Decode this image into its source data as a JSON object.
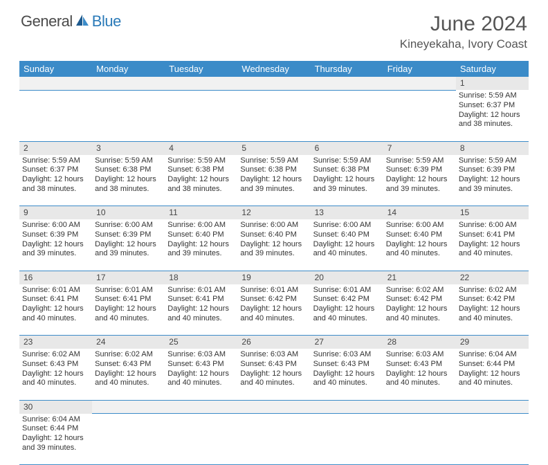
{
  "logo": {
    "part1": "General",
    "part2": "Blue"
  },
  "title": "June 2024",
  "location": "Kineyekaha, Ivory Coast",
  "colors": {
    "header_bg": "#3b8bc8",
    "header_text": "#ffffff",
    "daynum_bg": "#e8e8e8",
    "blank_bg": "#f1f1f1",
    "border": "#3b8bc8",
    "logo_gray": "#4a4a4a",
    "logo_blue": "#2a7ab8"
  },
  "weekdays": [
    "Sunday",
    "Monday",
    "Tuesday",
    "Wednesday",
    "Thursday",
    "Friday",
    "Saturday"
  ],
  "weeks": [
    {
      "nums": [
        "",
        "",
        "",
        "",
        "",
        "",
        "1"
      ],
      "cells": [
        null,
        null,
        null,
        null,
        null,
        null,
        {
          "sunrise": "5:59 AM",
          "sunset": "6:37 PM",
          "daylight": "12 hours and 38 minutes."
        }
      ]
    },
    {
      "nums": [
        "2",
        "3",
        "4",
        "5",
        "6",
        "7",
        "8"
      ],
      "cells": [
        {
          "sunrise": "5:59 AM",
          "sunset": "6:37 PM",
          "daylight": "12 hours and 38 minutes."
        },
        {
          "sunrise": "5:59 AM",
          "sunset": "6:38 PM",
          "daylight": "12 hours and 38 minutes."
        },
        {
          "sunrise": "5:59 AM",
          "sunset": "6:38 PM",
          "daylight": "12 hours and 38 minutes."
        },
        {
          "sunrise": "5:59 AM",
          "sunset": "6:38 PM",
          "daylight": "12 hours and 39 minutes."
        },
        {
          "sunrise": "5:59 AM",
          "sunset": "6:38 PM",
          "daylight": "12 hours and 39 minutes."
        },
        {
          "sunrise": "5:59 AM",
          "sunset": "6:39 PM",
          "daylight": "12 hours and 39 minutes."
        },
        {
          "sunrise": "5:59 AM",
          "sunset": "6:39 PM",
          "daylight": "12 hours and 39 minutes."
        }
      ]
    },
    {
      "nums": [
        "9",
        "10",
        "11",
        "12",
        "13",
        "14",
        "15"
      ],
      "cells": [
        {
          "sunrise": "6:00 AM",
          "sunset": "6:39 PM",
          "daylight": "12 hours and 39 minutes."
        },
        {
          "sunrise": "6:00 AM",
          "sunset": "6:39 PM",
          "daylight": "12 hours and 39 minutes."
        },
        {
          "sunrise": "6:00 AM",
          "sunset": "6:40 PM",
          "daylight": "12 hours and 39 minutes."
        },
        {
          "sunrise": "6:00 AM",
          "sunset": "6:40 PM",
          "daylight": "12 hours and 39 minutes."
        },
        {
          "sunrise": "6:00 AM",
          "sunset": "6:40 PM",
          "daylight": "12 hours and 40 minutes."
        },
        {
          "sunrise": "6:00 AM",
          "sunset": "6:40 PM",
          "daylight": "12 hours and 40 minutes."
        },
        {
          "sunrise": "6:00 AM",
          "sunset": "6:41 PM",
          "daylight": "12 hours and 40 minutes."
        }
      ]
    },
    {
      "nums": [
        "16",
        "17",
        "18",
        "19",
        "20",
        "21",
        "22"
      ],
      "cells": [
        {
          "sunrise": "6:01 AM",
          "sunset": "6:41 PM",
          "daylight": "12 hours and 40 minutes."
        },
        {
          "sunrise": "6:01 AM",
          "sunset": "6:41 PM",
          "daylight": "12 hours and 40 minutes."
        },
        {
          "sunrise": "6:01 AM",
          "sunset": "6:41 PM",
          "daylight": "12 hours and 40 minutes."
        },
        {
          "sunrise": "6:01 AM",
          "sunset": "6:42 PM",
          "daylight": "12 hours and 40 minutes."
        },
        {
          "sunrise": "6:01 AM",
          "sunset": "6:42 PM",
          "daylight": "12 hours and 40 minutes."
        },
        {
          "sunrise": "6:02 AM",
          "sunset": "6:42 PM",
          "daylight": "12 hours and 40 minutes."
        },
        {
          "sunrise": "6:02 AM",
          "sunset": "6:42 PM",
          "daylight": "12 hours and 40 minutes."
        }
      ]
    },
    {
      "nums": [
        "23",
        "24",
        "25",
        "26",
        "27",
        "28",
        "29"
      ],
      "cells": [
        {
          "sunrise": "6:02 AM",
          "sunset": "6:43 PM",
          "daylight": "12 hours and 40 minutes."
        },
        {
          "sunrise": "6:02 AM",
          "sunset": "6:43 PM",
          "daylight": "12 hours and 40 minutes."
        },
        {
          "sunrise": "6:03 AM",
          "sunset": "6:43 PM",
          "daylight": "12 hours and 40 minutes."
        },
        {
          "sunrise": "6:03 AM",
          "sunset": "6:43 PM",
          "daylight": "12 hours and 40 minutes."
        },
        {
          "sunrise": "6:03 AM",
          "sunset": "6:43 PM",
          "daylight": "12 hours and 40 minutes."
        },
        {
          "sunrise": "6:03 AM",
          "sunset": "6:43 PM",
          "daylight": "12 hours and 40 minutes."
        },
        {
          "sunrise": "6:04 AM",
          "sunset": "6:44 PM",
          "daylight": "12 hours and 40 minutes."
        }
      ]
    },
    {
      "nums": [
        "30",
        "",
        "",
        "",
        "",
        "",
        ""
      ],
      "cells": [
        {
          "sunrise": "6:04 AM",
          "sunset": "6:44 PM",
          "daylight": "12 hours and 39 minutes."
        },
        null,
        null,
        null,
        null,
        null,
        null
      ]
    }
  ],
  "labels": {
    "sunrise": "Sunrise:",
    "sunset": "Sunset:",
    "daylight": "Daylight:"
  }
}
